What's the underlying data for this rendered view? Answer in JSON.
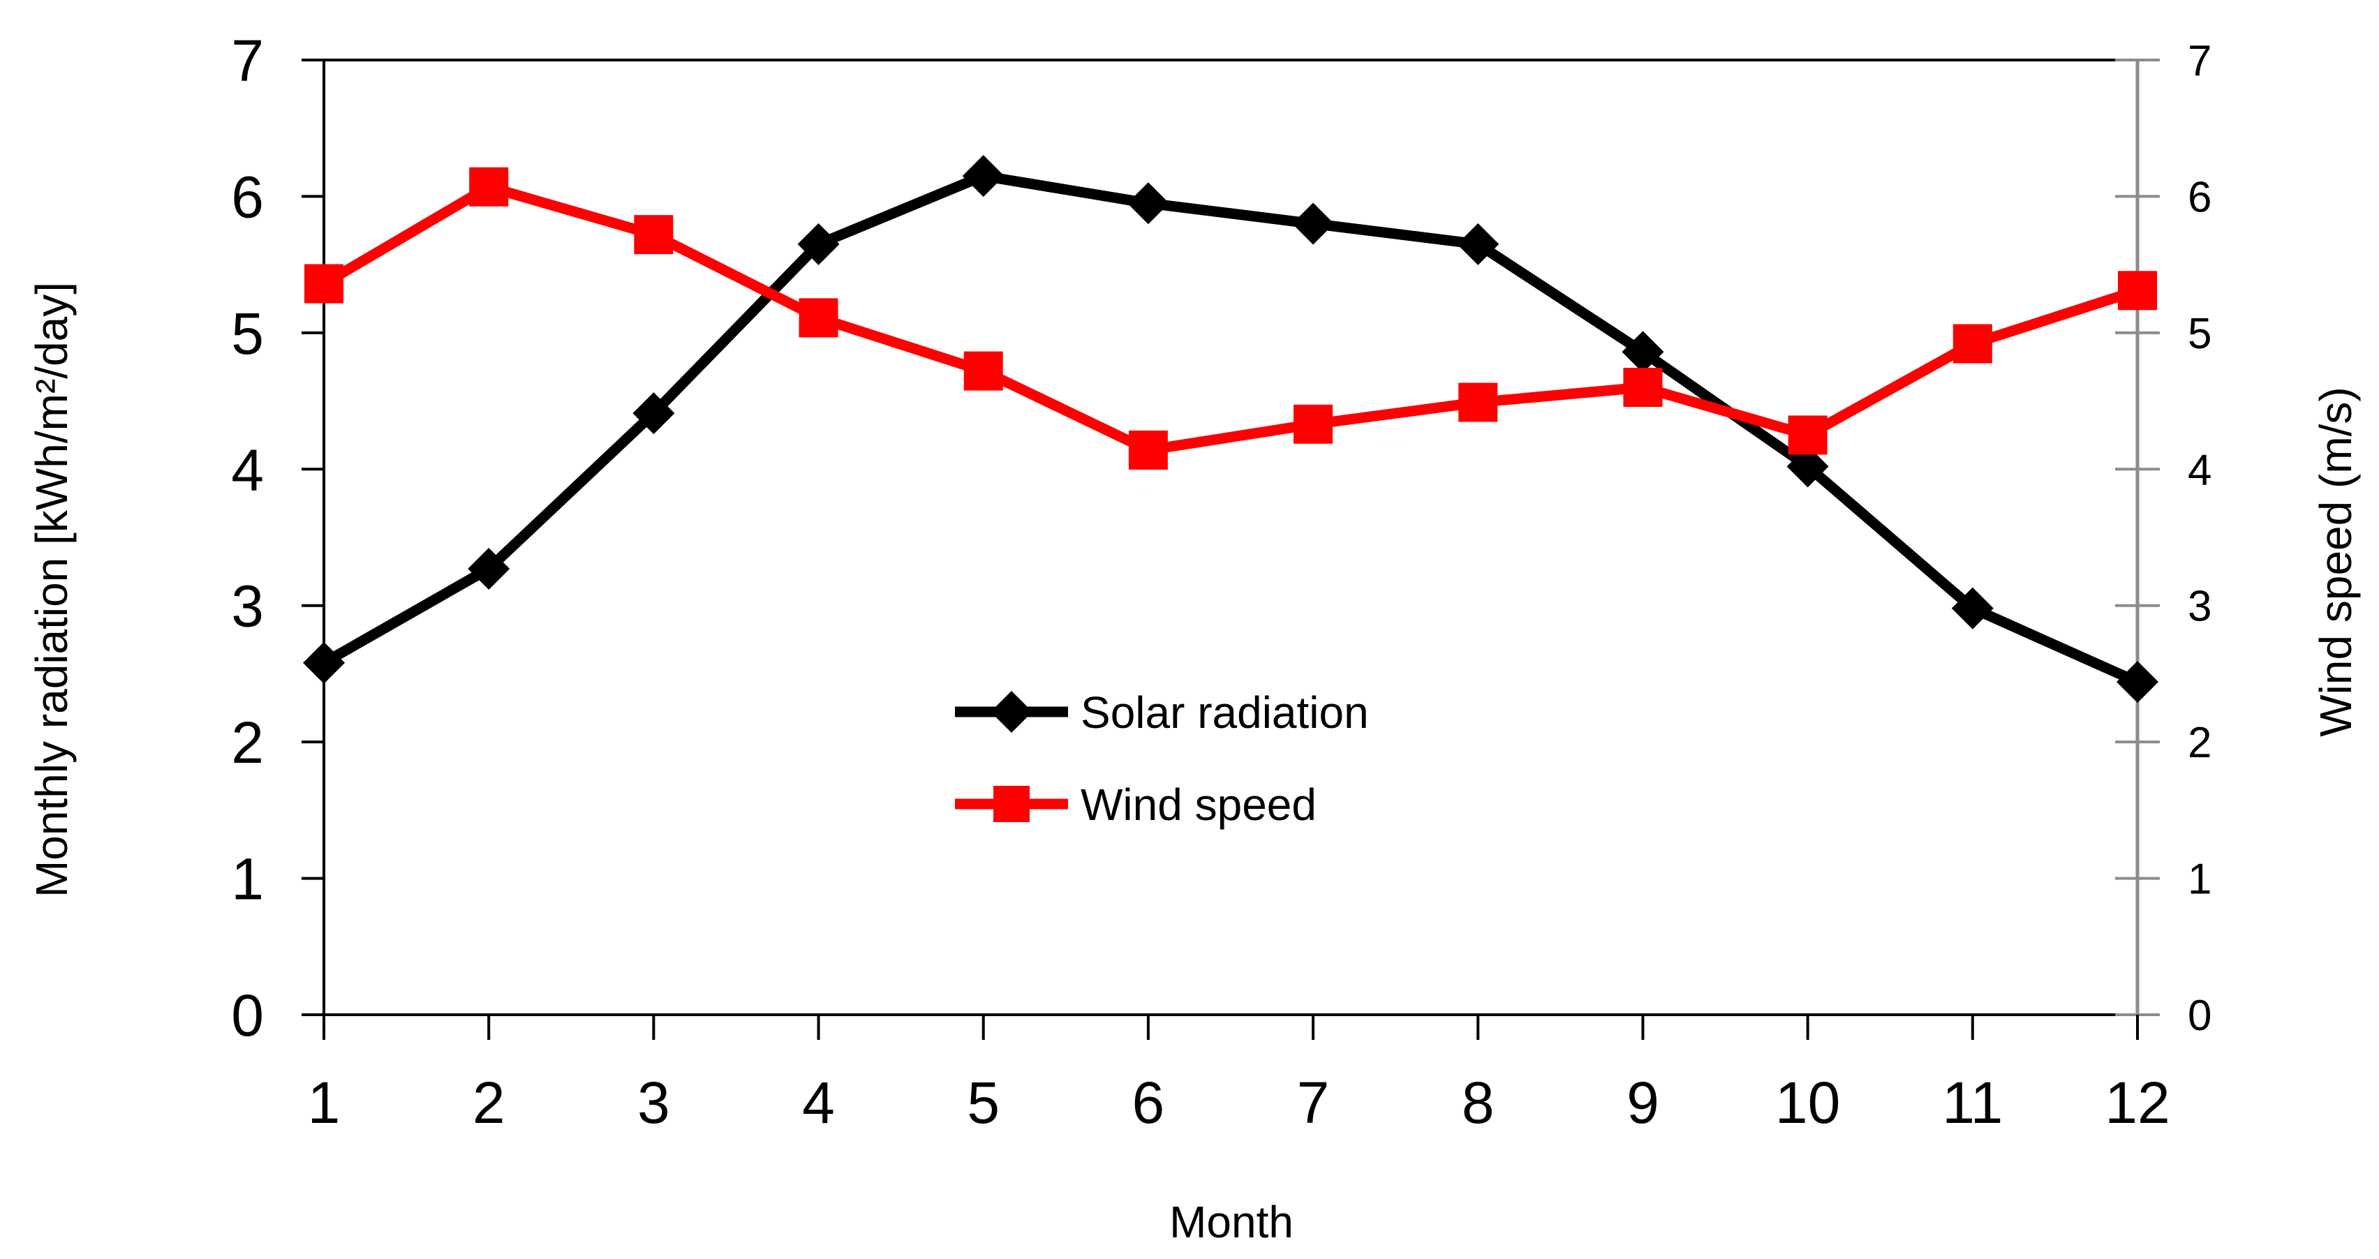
{
  "chart_data": {
    "type": "line",
    "title": "",
    "x": [
      1,
      2,
      3,
      4,
      5,
      6,
      7,
      8,
      9,
      10,
      11,
      12
    ],
    "xlabel": "Month",
    "ylabel_left": "Monthly radiation [kWh/m²/day]",
    "ylabel_right": "Wind speed (m/s)",
    "ylim_left": [
      0,
      7
    ],
    "ylim_right": [
      0,
      7
    ],
    "yticks": [
      0,
      1,
      2,
      3,
      4,
      5,
      6,
      7
    ],
    "grid": false,
    "legend_position": "center",
    "series": [
      {
        "name": "Solar radiation",
        "axis": "left",
        "color": "#000000",
        "marker": "diamond",
        "values": [
          2.58,
          3.27,
          4.41,
          5.65,
          6.15,
          5.95,
          5.8,
          5.65,
          4.86,
          4.02,
          2.98,
          2.44
        ]
      },
      {
        "name": "Wind speed",
        "axis": "right",
        "color": "#ff0000",
        "marker": "square",
        "values": [
          5.36,
          6.07,
          5.72,
          5.11,
          4.72,
          4.14,
          4.33,
          4.49,
          4.6,
          4.25,
          4.92,
          5.31
        ]
      }
    ]
  }
}
